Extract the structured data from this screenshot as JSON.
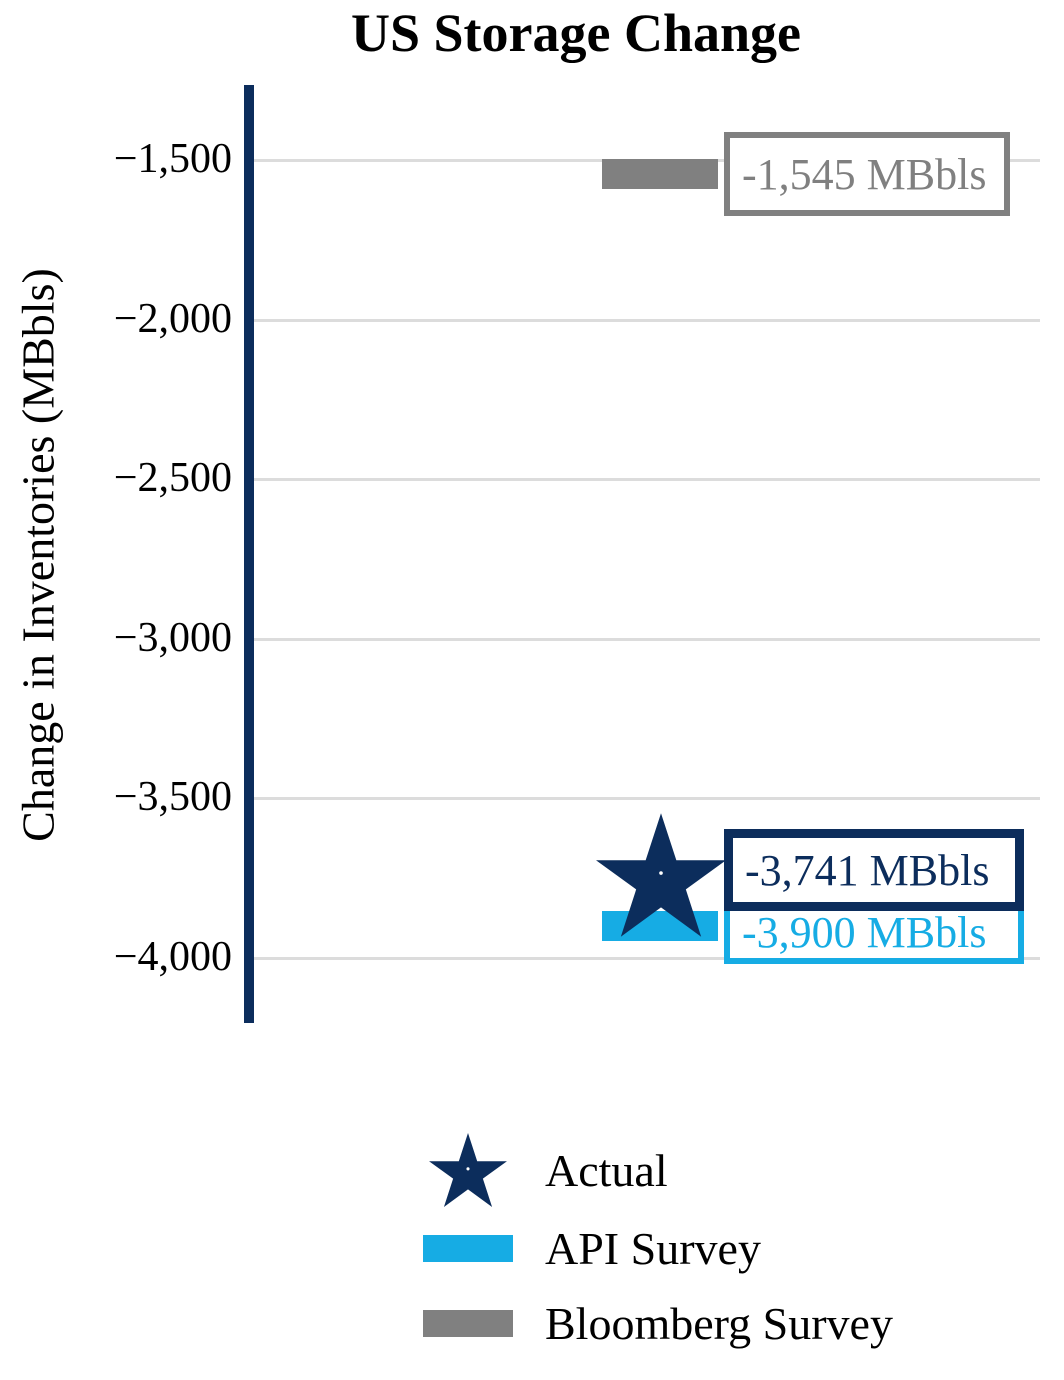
{
  "title": "US Storage Change",
  "ylabel": "Change in Inventories (MBbls)",
  "colors": {
    "navy": "#0c2d5c",
    "cyan": "#16ace4",
    "gray": "#808080",
    "gridline": "#dcdcdc",
    "background": "#ffffff"
  },
  "chart_data": {
    "type": "bar",
    "title": "US Storage Change",
    "xlabel": "",
    "ylabel": "Change in Inventories (MBbls)",
    "ylim": [
      -4200,
      -1250
    ],
    "grid": true,
    "legend_position": "bottom",
    "yticks": [
      {
        "value": -1500,
        "label": "−1,500"
      },
      {
        "value": -2000,
        "label": "−2,000"
      },
      {
        "value": -2500,
        "label": "−2,500"
      },
      {
        "value": -3000,
        "label": "−3,000"
      },
      {
        "value": -3500,
        "label": "−3,500"
      },
      {
        "value": -4000,
        "label": "−4,000"
      }
    ],
    "series": [
      {
        "name": "Actual",
        "marker": "star",
        "value": -3741,
        "label": "-3,741 MBbls",
        "color": "#0c2d5c"
      },
      {
        "name": "API Survey",
        "marker": "bar",
        "value": -3900,
        "label": "-3,900 MBbls",
        "color": "#16ace4"
      },
      {
        "name": "Bloomberg Survey",
        "marker": "bar",
        "value": -1545,
        "label": "-1,545 MBbls",
        "color": "#808080"
      }
    ]
  }
}
